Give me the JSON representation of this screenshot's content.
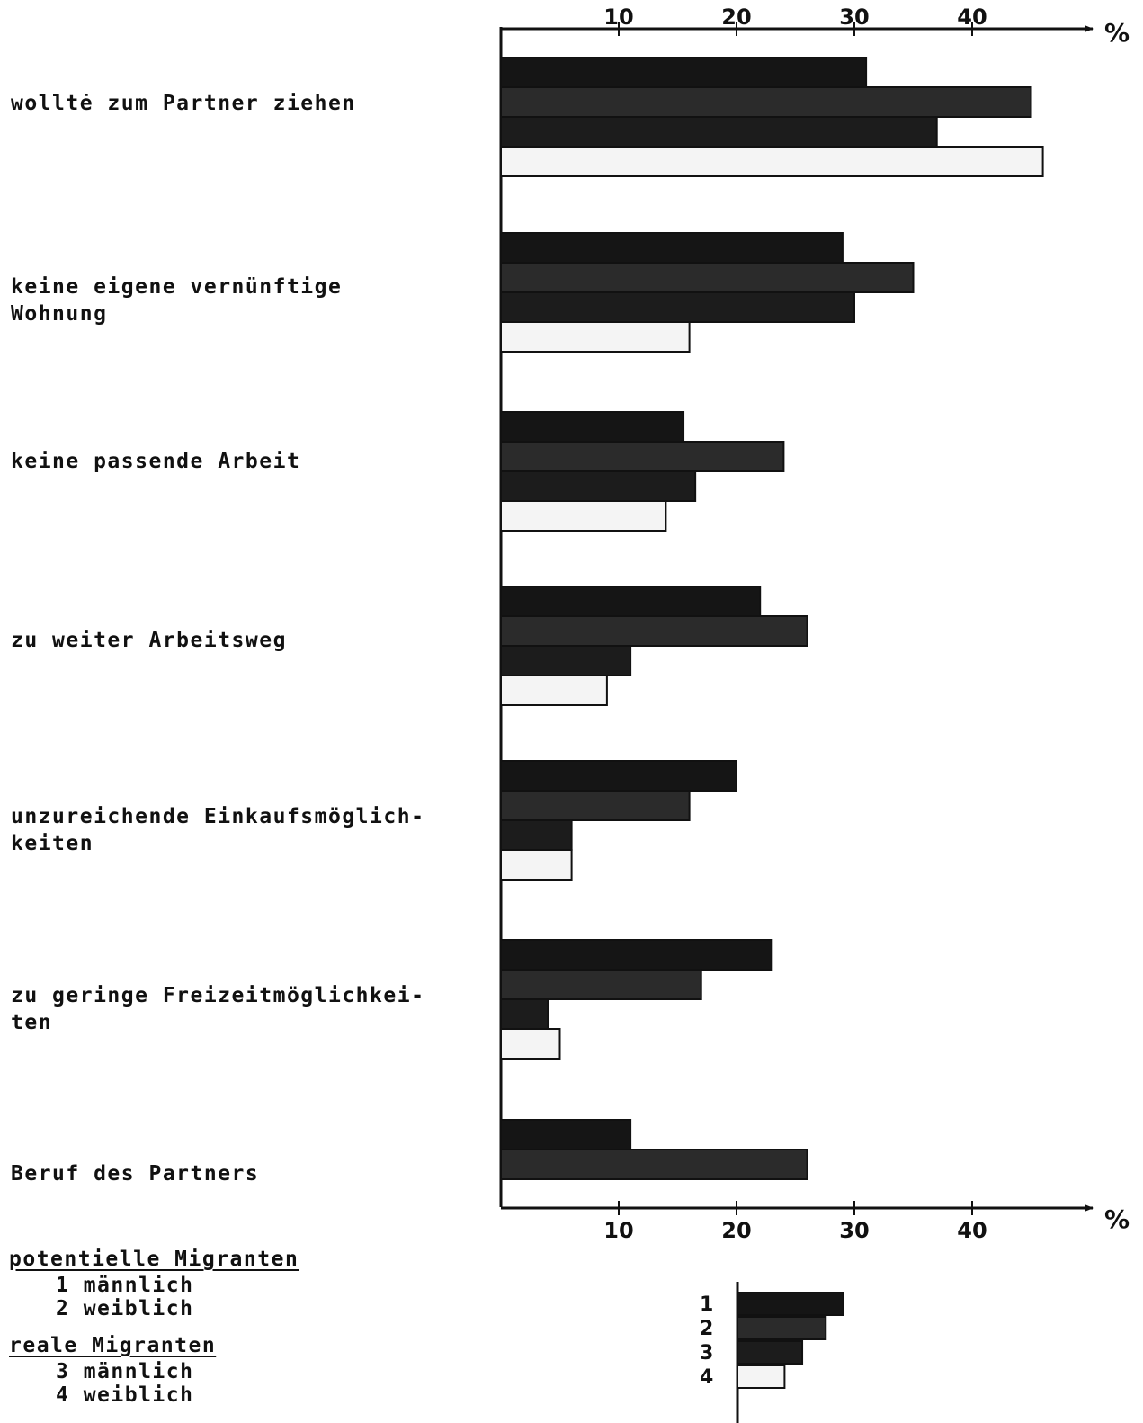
{
  "chart_data": {
    "type": "bar",
    "orientation": "horizontal",
    "unit": "%",
    "xlim": [
      0,
      45
    ],
    "ticks": [
      "10",
      "20",
      "30",
      "40"
    ],
    "categories": [
      "wolltė zum Partner ziehen",
      "keine eigene vernünftige\nWohnung",
      "keine passende Arbeit",
      "zu weiter Arbeitsweg",
      "unzureichende Einkaufsmöglich-\nkeiten",
      "zu geringe Freizeitmöglichkei-\nten",
      "Beruf des Partners"
    ],
    "series": [
      {
        "name": "1",
        "color": "#151515",
        "values": [
          31,
          29,
          15.5,
          22,
          20,
          23,
          11
        ]
      },
      {
        "name": "2",
        "color": "#2b2b2b",
        "values": [
          45,
          35,
          24,
          26,
          16,
          17,
          26
        ]
      },
      {
        "name": "3",
        "color": "#1c1c1c",
        "values": [
          37,
          30,
          16.5,
          11,
          6,
          4,
          null
        ]
      },
      {
        "name": "4",
        "color": "#f4f4f4",
        "values": [
          46,
          16,
          14,
          9,
          6,
          5,
          null
        ]
      }
    ],
    "grid": false
  },
  "legend": {
    "potential_title": "potentielle Migranten",
    "potential_items": [
      "1 männlich",
      "2 weiblich"
    ],
    "real_title": "reale Migranten",
    "real_items": [
      "3 männlich",
      "4 weiblich"
    ]
  },
  "key": {
    "labels": [
      "1",
      "2",
      "3",
      "4"
    ],
    "values": [
      9,
      7.5,
      5.5,
      4
    ]
  }
}
